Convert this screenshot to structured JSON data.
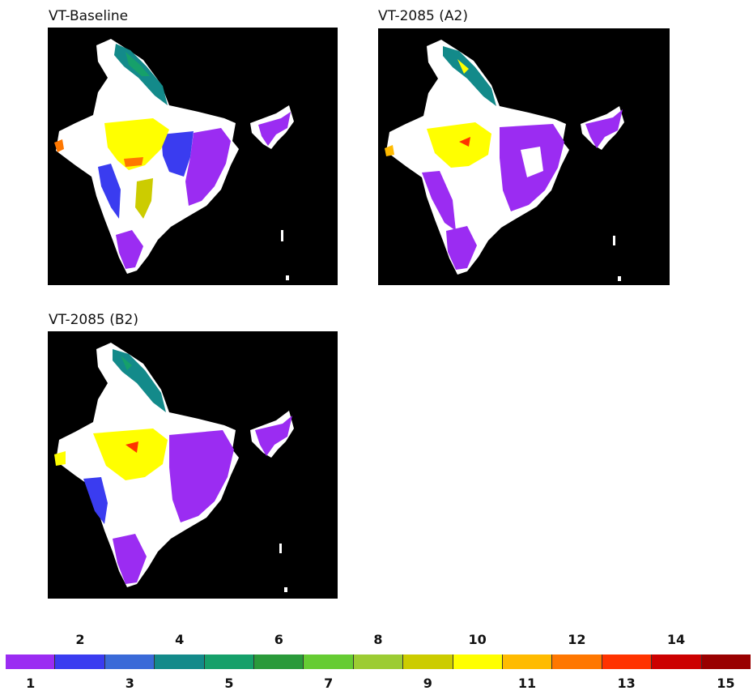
{
  "panels": [
    {
      "id": "baseline",
      "title": "VT-Baseline"
    },
    {
      "id": "a2",
      "title": "VT-2085 (A2)"
    },
    {
      "id": "b2",
      "title": "VT-2085 (B2)"
    }
  ],
  "legend": {
    "classes": [
      {
        "value": "1",
        "color": "#9b2cf2"
      },
      {
        "value": "2",
        "color": "#3a3cf0"
      },
      {
        "value": "3",
        "color": "#3a6ad8"
      },
      {
        "value": "4",
        "color": "#138a8a"
      },
      {
        "value": "5",
        "color": "#16a06a"
      },
      {
        "value": "6",
        "color": "#2a9a3a"
      },
      {
        "value": "7",
        "color": "#66cc33"
      },
      {
        "value": "8",
        "color": "#9ccc33"
      },
      {
        "value": "9",
        "color": "#cccc00"
      },
      {
        "value": "10",
        "color": "#ffff00"
      },
      {
        "value": "11",
        "color": "#ffbb00"
      },
      {
        "value": "12",
        "color": "#ff7700"
      },
      {
        "value": "13",
        "color": "#ff3300"
      },
      {
        "value": "14",
        "color": "#cc0000"
      },
      {
        "value": "15",
        "color": "#990000"
      }
    ]
  }
}
